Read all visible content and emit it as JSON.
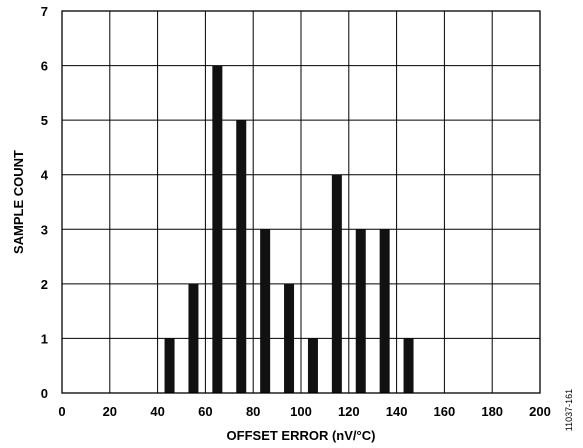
{
  "chart_data": {
    "type": "bar",
    "title": "",
    "xlabel": "OFFSET ERROR  (nV/°C)",
    "ylabel": "SAMPLE COUNT",
    "xlim": [
      0,
      200
    ],
    "ylim": [
      0,
      7
    ],
    "xticks": [
      0,
      20,
      40,
      60,
      80,
      100,
      120,
      140,
      160,
      180,
      200
    ],
    "yticks": [
      0,
      1,
      2,
      3,
      4,
      5,
      6,
      7
    ],
    "grid": true,
    "bar_color": "#111111",
    "x": [
      45,
      55,
      65,
      75,
      85,
      95,
      105,
      115,
      125,
      135,
      145
    ],
    "values": [
      1,
      2,
      6,
      5,
      3,
      2,
      1,
      4,
      3,
      3,
      1
    ]
  },
  "figure_id": "11037-161"
}
